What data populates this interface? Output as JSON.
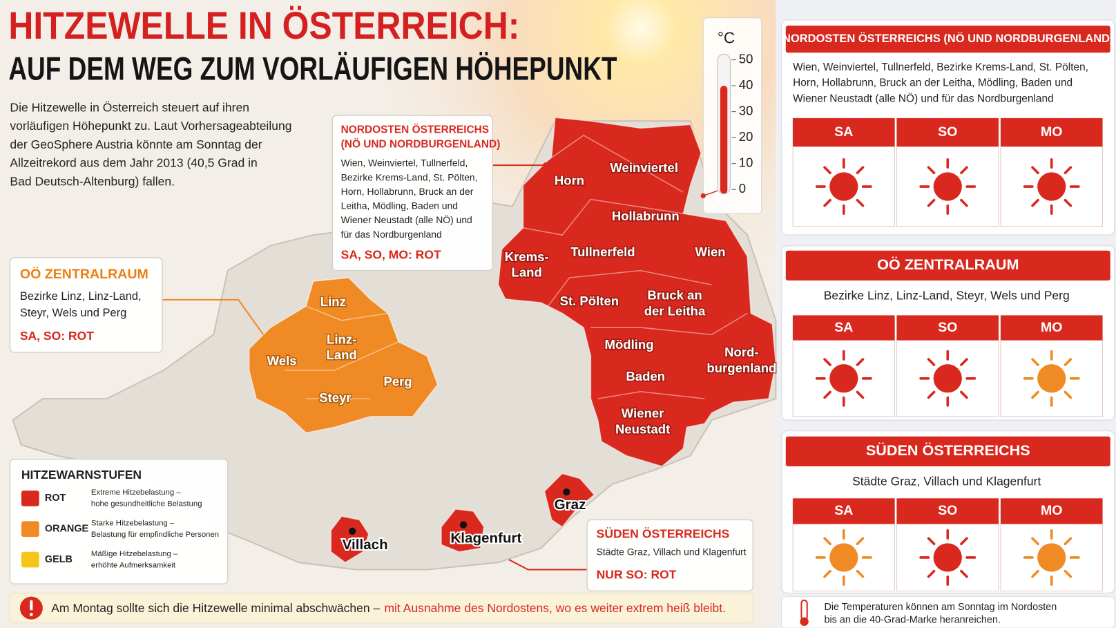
{
  "header": {
    "title": "HITZEWELLE IN ÖSTERREICH:",
    "subtitle": "AUF DEM WEG ZUM VORLÄUFIGEN HÖHEPUNKT"
  },
  "intro": [
    "Die Hitzewelle in Österreich steuert auf ihren",
    "vorläufigen Höhepunkt zu. Laut Vorhersageabteilung",
    "der GeoSphere Austria könnte am Sonntag der",
    "Allzeitrekord aus dem Jahr 2013 (40,5 Grad in",
    "Bad Deutsch-Altenburg) fallen."
  ],
  "thermometer": {
    "unit": "°C",
    "ticks": [
      0,
      10,
      20,
      30,
      40,
      50
    ],
    "ylim": [
      0,
      50
    ],
    "level": 40,
    "color": "#d9281e"
  },
  "map": {
    "nordosten": {
      "color": "#d9281e",
      "regions": [
        [
          "Horn"
        ],
        [
          "Weinviertel"
        ],
        [
          "Hollabrunn"
        ],
        [
          "Krems-",
          "Land"
        ],
        [
          "Tullnerfeld"
        ],
        [
          "Wien"
        ],
        [
          "St. Pölten"
        ],
        [
          "Bruck an",
          "der Leitha"
        ],
        [
          "Mödling"
        ],
        [
          "Baden"
        ],
        [
          "Nord-",
          "burgenland"
        ],
        [
          "Wiener",
          "Neustadt"
        ]
      ]
    },
    "zentralraum": {
      "color": "#f08a24",
      "regions": [
        [
          "Linz"
        ],
        [
          "Linz-",
          "Land"
        ],
        [
          "Wels"
        ],
        [
          "Perg"
        ],
        [
          "Steyr"
        ]
      ]
    },
    "cities": {
      "color": "#d9281e",
      "regions": [
        [
          "Villach"
        ],
        [
          "Klagenfurt"
        ],
        [
          "Graz"
        ]
      ]
    }
  },
  "callouts": [
    {
      "title": [
        "NORDOSTEN ÖSTERREICHS",
        "(NÖ UND NORDBURGENLAND)"
      ],
      "body": [
        "Wien, Weinviertel, Tullnerfeld,",
        "Bezirke Krems-Land, St. Pölten,",
        "Horn, Hollabrunn, Bruck an der",
        "Leitha, Mödling, Baden und",
        "Wiener Neustadt (alle NÖ) und",
        "für das Nordburgenland"
      ],
      "status": "SA, SO, MO: ROT"
    },
    {
      "title": [
        "OÖ ZENTRALRAUM"
      ],
      "body": [
        "Bezirke Linz, Linz-Land,",
        "Steyr, Wels und Perg"
      ],
      "status": "SA, SO: ROT"
    },
    {
      "title": [
        "SÜDEN ÖSTERREICHS"
      ],
      "body": [
        "Städte Graz, Villach und Klagenfurt"
      ],
      "status": "NUR SO: ROT"
    }
  ],
  "legend": {
    "title": "HITZEWARNSTUFEN",
    "items": [
      {
        "name": "ROT",
        "color": "#d9281e",
        "desc": [
          "Extreme Hitzebelastung –",
          "hohe gesundheitliche Belastung"
        ]
      },
      {
        "name": "ORANGE",
        "color": "#f08a24",
        "desc": [
          "Starke Hitzebelastung –",
          "Belastung für empfindliche Personen"
        ]
      },
      {
        "name": "GELB",
        "color": "#f5c518",
        "desc": [
          "Mäßige Hitzebelastung –",
          "erhöhte Aufmerksamkeit"
        ]
      }
    ]
  },
  "notice": {
    "text": "Am Montag sollte sich die Hitzewelle minimal abschwächen –",
    "highlight": "mit Ausnahme des Nordostens, wo es weiter extrem heiß bleibt."
  },
  "forecasts": [
    {
      "title": "NORDOSTEN ÖSTERREICHS (NÖ UND NORDBURGENLAND)",
      "description": [
        "Wien, Weinviertel, Tullnerfeld, Bezirke Krems-Land, St. Pölten,",
        "Horn, Hollabrunn, Bruck an der Leitha, Mödling, Baden und",
        "Wiener Neustadt (alle NÖ) und für das Nordburgenland"
      ],
      "days": [
        {
          "day": "SA",
          "color": "#d9281e"
        },
        {
          "day": "SO",
          "color": "#d9281e"
        },
        {
          "day": "MO",
          "color": "#d9281e"
        }
      ]
    },
    {
      "title": "OÖ ZENTRALRAUM",
      "description": [
        "Bezirke Linz, Linz-Land, Steyr, Wels und Perg"
      ],
      "days": [
        {
          "day": "SA",
          "color": "#d9281e"
        },
        {
          "day": "SO",
          "color": "#d9281e"
        },
        {
          "day": "MO",
          "color": "#f08a24"
        }
      ]
    },
    {
      "title": "SÜDEN ÖSTERREICHS",
      "description": [
        "Städte Graz, Villach und Klagenfurt"
      ],
      "days": [
        {
          "day": "SA",
          "color": "#f08a24"
        },
        {
          "day": "SO",
          "color": "#d9281e"
        },
        {
          "day": "MO",
          "color": "#f08a24"
        }
      ]
    }
  ],
  "footnote": [
    "Die Temperaturen können am Sonntag im Nordosten",
    "bis an die 40-Grad-Marke heranreichen."
  ]
}
